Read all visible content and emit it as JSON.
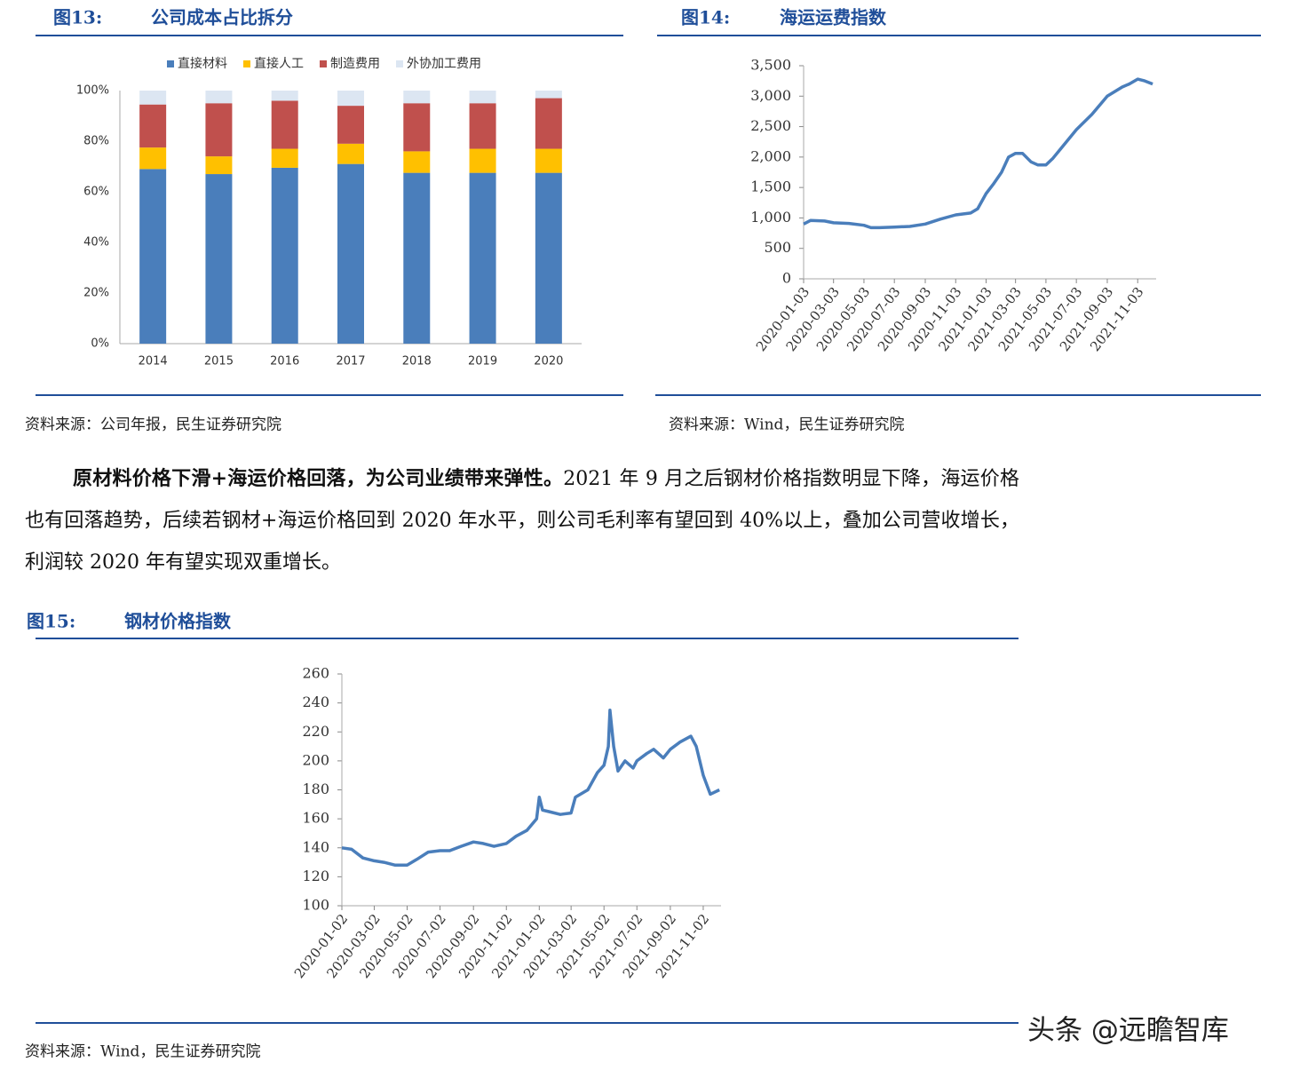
{
  "chart_data": [
    {
      "type": "stacked-bar",
      "figure_label": "图13:",
      "title": "公司成本占比拆分",
      "source": "资料来源：公司年报，民生证券研究院",
      "categories": [
        "2014",
        "2015",
        "2016",
        "2017",
        "2018",
        "2019",
        "2020"
      ],
      "series": [
        {
          "name": "直接材料",
          "color": "#4a7ebb",
          "values": [
            69,
            67,
            69.5,
            71,
            67.5,
            67.5,
            67.5
          ]
        },
        {
          "name": "直接人工",
          "color": "#ffc000",
          "values": [
            8.5,
            7,
            7.5,
            8,
            8.5,
            9.5,
            9.5
          ]
        },
        {
          "name": "制造费用",
          "color": "#c0504d",
          "values": [
            17,
            21,
            19,
            15,
            19,
            18,
            20
          ]
        },
        {
          "name": "外协加工费用",
          "color": "#dce6f2",
          "values": [
            5.5,
            5,
            4,
            6,
            5,
            5,
            3
          ]
        }
      ],
      "ylim": [
        0,
        100
      ],
      "yticks": [
        {
          "value": 0,
          "label": "0%"
        },
        {
          "value": 20,
          "label": "20%"
        },
        {
          "value": 40,
          "label": "40%"
        },
        {
          "value": 60,
          "label": "60%"
        },
        {
          "value": 80,
          "label": "80%"
        },
        {
          "value": 100,
          "label": "100%"
        }
      ],
      "legend": "top"
    },
    {
      "type": "line",
      "figure_label": "图14:",
      "title": "海运运费指数",
      "source": "资料来源：Wind，民生证券研究院",
      "color": "#4a7ebb",
      "x": [
        "2020-01-03",
        "2020-01-17",
        "2020-02-14",
        "2020-03-03",
        "2020-04-03",
        "2020-05-03",
        "2020-05-17",
        "2020-06-03",
        "2020-07-03",
        "2020-08-03",
        "2020-09-03",
        "2020-10-03",
        "2020-11-03",
        "2020-12-03",
        "2020-12-17",
        "2021-01-03",
        "2021-01-17",
        "2021-02-03",
        "2021-02-17",
        "2021-03-03",
        "2021-03-17",
        "2021-04-03",
        "2021-04-17",
        "2021-05-03",
        "2021-05-17",
        "2021-06-03",
        "2021-07-03",
        "2021-08-03",
        "2021-09-03",
        "2021-10-03",
        "2021-10-17",
        "2021-11-03",
        "2021-11-17",
        "2021-12-03"
      ],
      "values": [
        900,
        960,
        950,
        920,
        910,
        880,
        840,
        840,
        850,
        860,
        900,
        980,
        1050,
        1080,
        1150,
        1400,
        1550,
        1750,
        2000,
        2060,
        2060,
        1920,
        1870,
        1870,
        1980,
        2150,
        2450,
        2700,
        3000,
        3150,
        3200,
        3280,
        3250,
        3200
      ],
      "xlim": [
        "2020-01-03",
        "2021-12-10"
      ],
      "xticks": [
        "2020-01-03",
        "2020-03-03",
        "2020-05-03",
        "2020-07-03",
        "2020-09-03",
        "2020-11-03",
        "2021-01-03",
        "2021-03-03",
        "2021-05-03",
        "2021-07-03",
        "2021-09-03",
        "2021-11-03"
      ],
      "ylim": [
        0,
        3500
      ],
      "yticks": [
        0,
        500,
        {
          "value": 1000,
          "label": "1,000"
        },
        {
          "value": 1500,
          "label": "1,500"
        },
        {
          "value": 2000,
          "label": "2,000"
        },
        {
          "value": 2500,
          "label": "2,500"
        },
        {
          "value": 3000,
          "label": "3,000"
        },
        {
          "value": 3500,
          "label": "3,500"
        }
      ]
    },
    {
      "type": "line",
      "figure_label": "图15:",
      "title": "钢材价格指数",
      "source": "资料来源：Wind，民生证券研究院",
      "color": "#4a7ebb",
      "x": [
        "2020-01-02",
        "2020-01-20",
        "2020-02-10",
        "2020-03-02",
        "2020-03-20",
        "2020-04-10",
        "2020-05-02",
        "2020-05-20",
        "2020-06-10",
        "2020-07-02",
        "2020-07-20",
        "2020-08-10",
        "2020-09-02",
        "2020-09-20",
        "2020-10-10",
        "2020-11-02",
        "2020-11-20",
        "2020-12-10",
        "2020-12-28",
        "2021-01-02",
        "2021-01-08",
        "2021-01-20",
        "2021-02-10",
        "2021-03-02",
        "2021-03-10",
        "2021-04-02",
        "2021-04-20",
        "2021-05-02",
        "2021-05-10",
        "2021-05-13",
        "2021-05-20",
        "2021-05-28",
        "2021-06-10",
        "2021-06-25",
        "2021-07-02",
        "2021-07-20",
        "2021-08-02",
        "2021-08-20",
        "2021-09-02",
        "2021-09-20",
        "2021-10-10",
        "2021-10-20",
        "2021-11-02",
        "2021-11-15",
        "2021-12-02"
      ],
      "values": [
        140,
        139,
        133,
        131,
        130,
        128,
        128,
        132,
        137,
        138,
        138,
        141,
        144,
        143,
        141,
        143,
        148,
        152,
        160,
        175,
        166,
        165,
        163,
        164,
        175,
        180,
        192,
        197,
        210,
        235,
        210,
        193,
        200,
        195,
        200,
        205,
        208,
        202,
        208,
        213,
        217,
        210,
        190,
        177,
        180
      ],
      "xlim": [
        "2020-01-02",
        "2021-12-05"
      ],
      "xticks": [
        "2020-01-02",
        "2020-03-02",
        "2020-05-02",
        "2020-07-02",
        "2020-09-02",
        "2020-11-02",
        "2021-01-02",
        "2021-03-02",
        "2021-05-02",
        "2021-07-02",
        "2021-09-02",
        "2021-11-02"
      ],
      "ylim": [
        100,
        260
      ],
      "yticks": [
        100,
        120,
        140,
        160,
        180,
        200,
        220,
        240,
        260
      ]
    }
  ],
  "paragraph": {
    "bold": "原材料价格下滑+海运价格回落，为公司业绩带来弹性。",
    "text": "2021 年 9 月之后钢材价格指数明显下降，海运价格也有回落趋势，后续若钢材+海运价格回到 2020 年水平，则公司毛利率有望回到 40%以上，叠加公司营收增长，利润较 2020 年有望实现双重增长。"
  },
  "watermark": "头条 @远瞻智库"
}
